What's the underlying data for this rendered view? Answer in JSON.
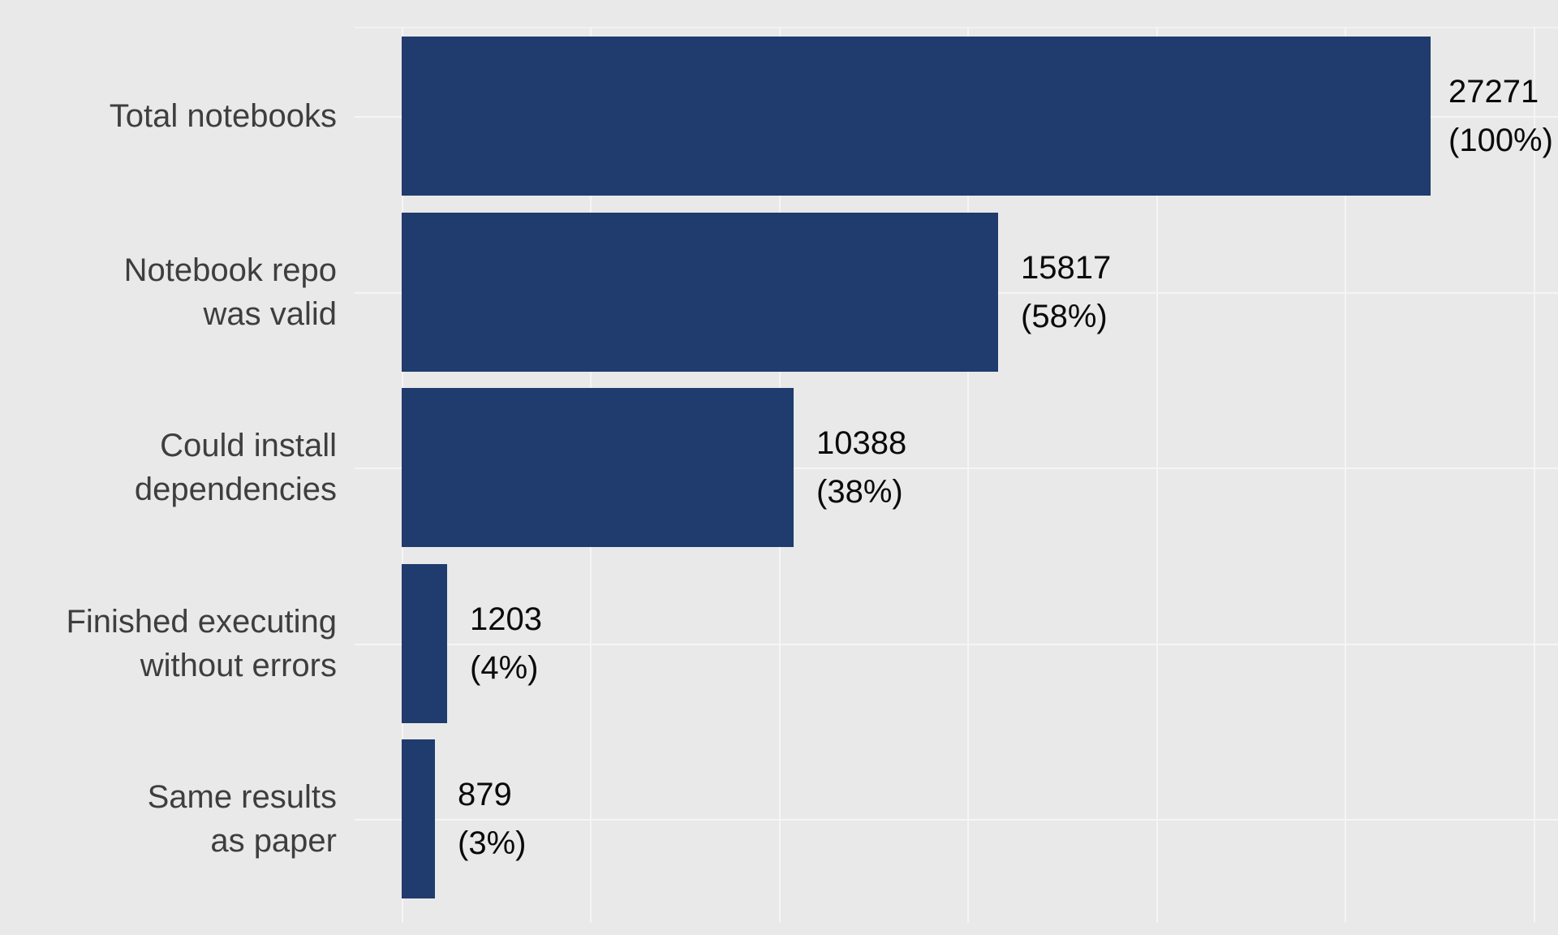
{
  "chart_data": {
    "type": "bar",
    "orientation": "horizontal",
    "title": "",
    "categories": [
      "Total notebooks",
      "Notebook repo was valid",
      "Could install dependencies",
      "Finished executing without errors",
      "Same results as paper"
    ],
    "category_lines": [
      [
        "Total notebooks"
      ],
      [
        "Notebook repo",
        "was valid"
      ],
      [
        "Could install",
        "dependencies"
      ],
      [
        "Finished executing",
        "without errors"
      ],
      [
        "Same results",
        "as paper"
      ]
    ],
    "values": [
      27271,
      15817,
      10388,
      1203,
      879
    ],
    "value_labels": [
      "27271",
      "15817",
      "10388",
      "1203",
      "879"
    ],
    "percents": [
      100,
      58,
      38,
      4,
      3
    ],
    "percent_labels": [
      "(100%)",
      "(58%)",
      "(38%)",
      "(4%)",
      "(3%)"
    ],
    "xlim": [
      0,
      27271
    ],
    "grid": true,
    "gridline_value_interval": 5000,
    "legend": "none",
    "colors": {
      "bar": "#203c6e",
      "background": "#e9e9e9",
      "gridline": "#f5f5f5",
      "panel_edge_line": "#f1f1f1",
      "category_label": "#3e3e3e",
      "value_label": "#0a0a0a"
    }
  }
}
